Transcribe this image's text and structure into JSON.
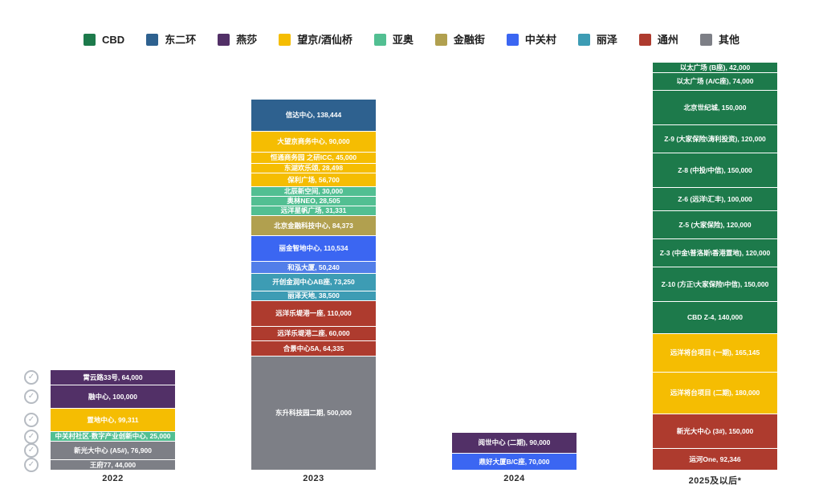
{
  "legend": {
    "items": [
      {
        "label": "CBD",
        "color": "#1d7a4b"
      },
      {
        "label": "东二环",
        "color": "#2e618f"
      },
      {
        "label": "燕莎",
        "color": "#523067"
      },
      {
        "label": "望京/酒仙桥",
        "color": "#f5bd02"
      },
      {
        "label": "亚奥",
        "color": "#52bf92"
      },
      {
        "label": "金融街",
        "color": "#b1a04f"
      },
      {
        "label": "中关村",
        "color": "#3b66f2"
      },
      {
        "label": "丽泽",
        "color": "#3d9cb4"
      },
      {
        "label": "通州",
        "color": "#ae3b2e"
      },
      {
        "label": "其他",
        "color": "#7d7f86"
      }
    ]
  },
  "icons": {
    "check_mark": "✓",
    "check_icon_meaning": "circled-checkmark shown beside every 2022 segment"
  },
  "chart_data": {
    "type": "bar",
    "variant": "stacked-column",
    "legend_position": "top",
    "grid": false,
    "categories": [
      "2022",
      "2023",
      "2024",
      "2025及以后*"
    ],
    "bars": [
      {
        "category": "2022",
        "checked": true,
        "segments": [
          {
            "name": "霄云路33号",
            "value": 64000,
            "color": "#523067"
          },
          {
            "name": "融中心",
            "value": 100000,
            "color": "#523067"
          },
          {
            "name": "置地中心",
            "value": 99311,
            "color": "#f5bd02"
          },
          {
            "name": "中关村社区·数字产业创新中心",
            "value": 25000,
            "color": "#52bf92"
          },
          {
            "name": "新光大中心 (A5#)",
            "value": 76900,
            "color": "#7d7f86"
          },
          {
            "name": "王府77",
            "value": 44000,
            "color": "#7d7f86"
          }
        ]
      },
      {
        "category": "2023",
        "checked": false,
        "segments": [
          {
            "name": "信达中心",
            "value": 138444,
            "color": "#2e618f"
          },
          {
            "name": "大望京商务中心",
            "value": 90000,
            "color": "#f5bd02"
          },
          {
            "name": "恒通商务园 之研ICC",
            "value": 45000,
            "color": "#f5bd02"
          },
          {
            "name": "东湖欢乐颂",
            "value": 28498,
            "color": "#f5bd02"
          },
          {
            "name": "保利广场",
            "value": 56700,
            "color": "#f5bd02"
          },
          {
            "name": "北辰新空间",
            "value": 30000,
            "color": "#52bf92"
          },
          {
            "name": "奥林NEO",
            "value": 28505,
            "color": "#52bf92"
          },
          {
            "name": "远洋星帆广场",
            "value": 31331,
            "color": "#52bf92"
          },
          {
            "name": "北京金融科技中心",
            "value": 84373,
            "color": "#b1a04f"
          },
          {
            "name": "丽金智地中心",
            "value": 110534,
            "color": "#3b66f2"
          },
          {
            "name": "和泓大厦",
            "value": 50240,
            "color": "#527ee9"
          },
          {
            "name": "开创金润中心AB座",
            "value": 73250,
            "color": "#3d9cb4"
          },
          {
            "name": "丽泽天地",
            "value": 38500,
            "color": "#3d9cb4"
          },
          {
            "name": "远洋乐堤港一座",
            "value": 110000,
            "color": "#ae3b2e"
          },
          {
            "name": "远洋乐堤港二座",
            "value": 60000,
            "color": "#ae3b2e"
          },
          {
            "name": "合景中心5A",
            "value": 64335,
            "color": "#ae3b2e"
          },
          {
            "name": "东升科技园二期",
            "value": 500000,
            "color": "#7d7f86"
          }
        ]
      },
      {
        "category": "2024",
        "checked": false,
        "segments": [
          {
            "name": "阅世中心 (二期)",
            "value": 90000,
            "color": "#523067"
          },
          {
            "name": "鼎好大厦B/C座",
            "value": 70000,
            "color": "#3b66f2"
          }
        ]
      },
      {
        "category": "2025及以后*",
        "checked": false,
        "segments": [
          {
            "name": "以太广场 (B座)",
            "value": 42000,
            "color": "#1d7a4b"
          },
          {
            "name": "以太广场 (A/C座)",
            "value": 74000,
            "color": "#1d7a4b"
          },
          {
            "name": "北京世纪城",
            "value": 150000,
            "color": "#1d7a4b"
          },
          {
            "name": "Z-9 (大家保险\\涛利投资)",
            "value": 120000,
            "color": "#1d7a4b"
          },
          {
            "name": "Z-8 (中投/中信)",
            "value": 150000,
            "color": "#1d7a4b"
          },
          {
            "name": "Z-6 (远洋\\汇丰)",
            "value": 100000,
            "color": "#1d7a4b"
          },
          {
            "name": "Z-5 (大家保险)",
            "value": 120000,
            "color": "#1d7a4b"
          },
          {
            "name": "Z-3 (中金\\普洛斯\\香港置地)",
            "value": 120000,
            "color": "#1d7a4b"
          },
          {
            "name": "Z-10 (方正\\大家保险\\中信)",
            "value": 150000,
            "color": "#1d7a4b"
          },
          {
            "name": "CBD Z-4",
            "value": 140000,
            "color": "#1d7a4b"
          },
          {
            "name": "远洋将台项目 (一期)",
            "value": 165145,
            "color": "#f5bd02"
          },
          {
            "name": "远洋将台项目 (二期)",
            "value": 180000,
            "color": "#f5bd02"
          },
          {
            "name": "新光大中心 (3#)",
            "value": 150000,
            "color": "#ae3b2e"
          },
          {
            "name": "运河One",
            "value": 92346,
            "color": "#ae3b2e"
          }
        ]
      }
    ]
  }
}
